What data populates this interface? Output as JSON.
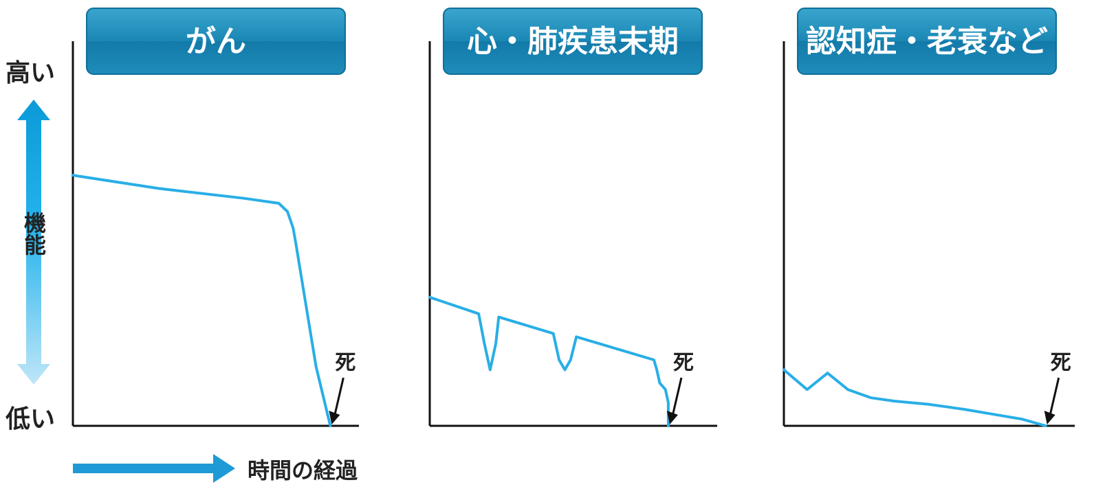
{
  "figure": {
    "y_axis": {
      "high_label": "高い",
      "low_label": "低い",
      "label": "機能"
    },
    "x_axis": {
      "label": "時間の経過"
    },
    "death_label": "死"
  },
  "colors": {
    "title_box": "#1a86b4",
    "curve": "#29aee6",
    "axis_arrow": "#1e9ad6",
    "axis_line": "#111111"
  },
  "chart_data": [
    {
      "type": "line",
      "title": "がん",
      "xlabel": "時間の経過",
      "ylabel": "機能",
      "xlim": [
        0,
        100
      ],
      "ylim": [
        0,
        100
      ],
      "series": [
        {
          "x": [
            0,
            30,
            60,
            72,
            75,
            77,
            78,
            85,
            90
          ],
          "y": [
            76,
            72,
            69,
            67.5,
            65,
            60,
            55,
            18,
            0
          ]
        }
      ],
      "annotations": [
        {
          "text": "死",
          "x": 90,
          "y": 0
        }
      ]
    },
    {
      "type": "line",
      "title": "心・肺疾患末期",
      "xlabel": "時間の経過",
      "ylabel": "機能",
      "xlim": [
        0,
        100
      ],
      "ylim": [
        0,
        100
      ],
      "series": [
        {
          "x": [
            0,
            17,
            19,
            21,
            23,
            24,
            43,
            45,
            47,
            49,
            51,
            78,
            79,
            80,
            82,
            83,
            83
          ],
          "y": [
            39,
            34,
            25,
            17,
            25,
            33,
            28,
            20,
            17,
            20,
            27,
            20,
            17,
            13,
            11,
            7,
            0
          ]
        }
      ],
      "annotations": [
        {
          "text": "死",
          "x": 83,
          "y": 0
        }
      ]
    },
    {
      "type": "line",
      "title": "認知症・老衰など",
      "xlabel": "時間の経過",
      "ylabel": "機能",
      "xlim": [
        0,
        100
      ],
      "ylim": [
        0,
        100
      ],
      "series": [
        {
          "x": [
            0,
            8,
            15,
            22,
            30,
            38,
            50,
            62,
            72,
            82,
            90
          ],
          "y": [
            17,
            11,
            16,
            11,
            8.5,
            7.5,
            6.5,
            5,
            3.5,
            2,
            0
          ]
        }
      ],
      "annotations": [
        {
          "text": "死",
          "x": 90,
          "y": 0
        }
      ]
    }
  ]
}
